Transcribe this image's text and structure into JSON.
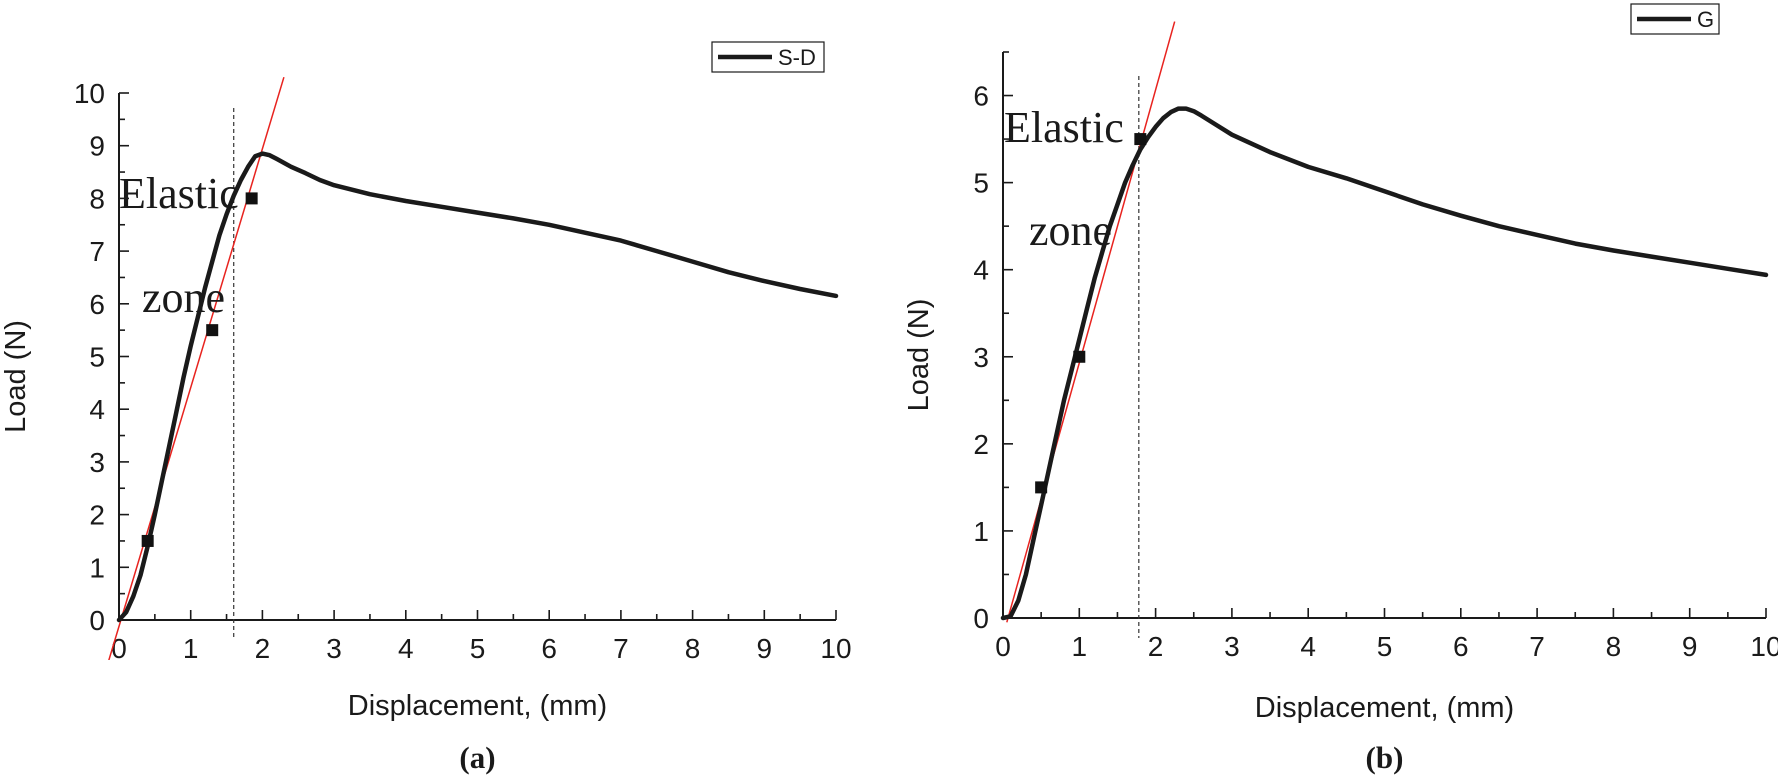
{
  "chart_data": [
    {
      "type": "line",
      "panel_label": "(a)",
      "xlabel": "Displacement, (mm)",
      "ylabel": "Load (N)",
      "xlim": [
        0,
        10
      ],
      "ylim": [
        0,
        10
      ],
      "xticks": [
        0,
        1,
        2,
        3,
        4,
        5,
        6,
        7,
        8,
        9,
        10
      ],
      "yticks": [
        0,
        1,
        2,
        3,
        4,
        5,
        6,
        7,
        8,
        9,
        10
      ],
      "legend": {
        "label": "S-D",
        "position": "top-right"
      },
      "series": [
        {
          "name": "S-D",
          "x": [
            0,
            0.1,
            0.2,
            0.3,
            0.4,
            0.5,
            0.6,
            0.7,
            0.8,
            0.9,
            1.0,
            1.1,
            1.2,
            1.3,
            1.4,
            1.5,
            1.6,
            1.7,
            1.8,
            1.9,
            2.0,
            2.1,
            2.2,
            2.4,
            2.6,
            2.8,
            3.0,
            3.5,
            4.0,
            4.5,
            5.0,
            5.5,
            6.0,
            6.5,
            7.0,
            7.5,
            8.0,
            8.5,
            9.0,
            9.5,
            10.0
          ],
          "y": [
            0,
            0.15,
            0.45,
            0.85,
            1.4,
            2.0,
            2.65,
            3.3,
            3.95,
            4.6,
            5.2,
            5.75,
            6.3,
            6.8,
            7.3,
            7.7,
            8.05,
            8.35,
            8.6,
            8.8,
            8.85,
            8.82,
            8.75,
            8.6,
            8.48,
            8.35,
            8.25,
            8.08,
            7.95,
            7.84,
            7.73,
            7.62,
            7.5,
            7.35,
            7.2,
            7.0,
            6.8,
            6.6,
            6.43,
            6.28,
            6.15
          ]
        }
      ],
      "markers": [
        {
          "x": 0.4,
          "y": 1.5
        },
        {
          "x": 1.3,
          "y": 5.5
        },
        {
          "x": 1.85,
          "y": 8.0
        }
      ],
      "fit_line": {
        "x": [
          -0.15,
          2.3
        ],
        "y": [
          -0.8,
          10.3
        ]
      },
      "vline_x": 1.6,
      "annotations": [
        "Elastic",
        "zone"
      ]
    },
    {
      "type": "line",
      "panel_label": "(b)",
      "xlabel": "Displacement, (mm)",
      "ylabel": "Load (N)",
      "xlim": [
        0,
        10
      ],
      "ylim": [
        0,
        6.5
      ],
      "xticks": [
        0,
        1,
        2,
        3,
        4,
        5,
        6,
        7,
        8,
        9,
        10
      ],
      "yticks": [
        0,
        1,
        2,
        3,
        4,
        5,
        6
      ],
      "legend": {
        "label": "G",
        "position": "top-right"
      },
      "series": [
        {
          "name": "G",
          "x": [
            0,
            0.1,
            0.2,
            0.3,
            0.4,
            0.5,
            0.6,
            0.7,
            0.8,
            0.9,
            1.0,
            1.1,
            1.2,
            1.3,
            1.4,
            1.5,
            1.6,
            1.7,
            1.8,
            1.9,
            2.0,
            2.1,
            2.2,
            2.3,
            2.4,
            2.5,
            2.6,
            2.8,
            3.0,
            3.5,
            4.0,
            4.5,
            5.0,
            5.5,
            6.0,
            6.5,
            7.0,
            7.5,
            8.0,
            8.5,
            9.0,
            9.5,
            10.0
          ],
          "y": [
            0,
            0.02,
            0.2,
            0.5,
            0.9,
            1.3,
            1.7,
            2.1,
            2.5,
            2.85,
            3.2,
            3.55,
            3.9,
            4.2,
            4.5,
            4.75,
            5.0,
            5.2,
            5.38,
            5.52,
            5.64,
            5.74,
            5.81,
            5.85,
            5.85,
            5.82,
            5.77,
            5.66,
            5.55,
            5.35,
            5.18,
            5.05,
            4.9,
            4.75,
            4.62,
            4.5,
            4.4,
            4.3,
            4.22,
            4.15,
            4.08,
            4.01,
            3.94
          ]
        }
      ],
      "markers": [
        {
          "x": 0.5,
          "y": 1.5
        },
        {
          "x": 1.0,
          "y": 3.0
        },
        {
          "x": 1.8,
          "y": 5.5
        }
      ],
      "fit_line": {
        "x": [
          0.05,
          2.25
        ],
        "y": [
          -0.05,
          6.85
        ]
      },
      "vline_x": 1.78,
      "annotations": [
        "Elastic",
        "zone"
      ]
    }
  ]
}
